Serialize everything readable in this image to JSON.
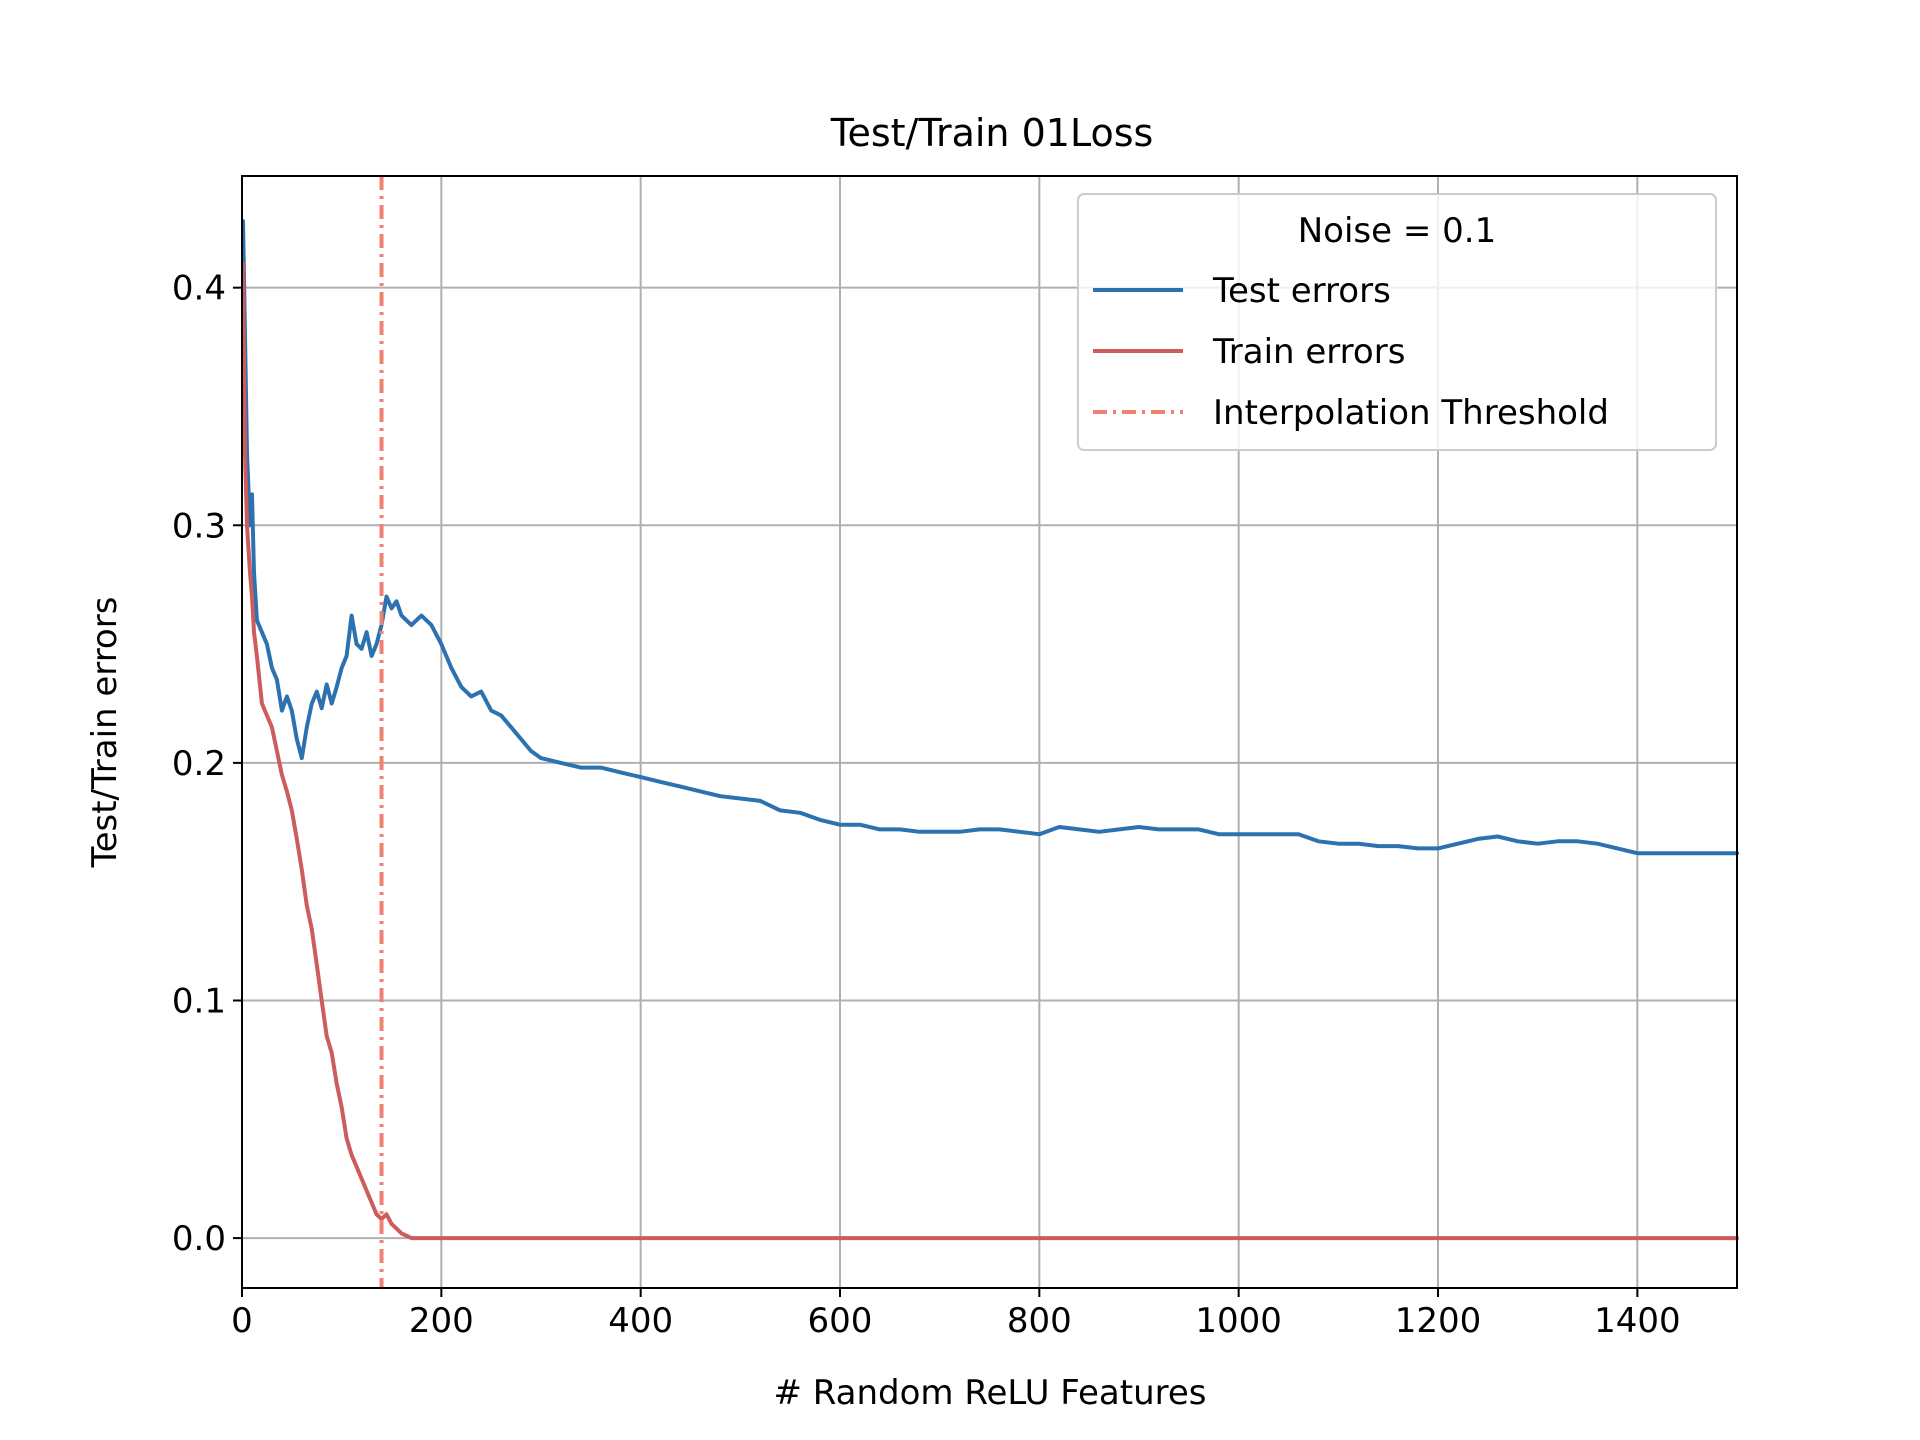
{
  "chart_data": {
    "type": "line",
    "title": "Test/Train 01Loss",
    "xlabel": "# Random ReLU Features",
    "ylabel": "Test/Train errors",
    "xlim": [
      0,
      1500
    ],
    "ylim": [
      -0.021,
      0.447
    ],
    "x_ticks": [
      0,
      200,
      400,
      600,
      800,
      1000,
      1200,
      1400
    ],
    "y_ticks": [
      0.0,
      0.1,
      0.2,
      0.3,
      0.4
    ],
    "x_tick_labels": [
      "0",
      "200",
      "400",
      "600",
      "800",
      "1000",
      "1200",
      "1400"
    ],
    "y_tick_labels": [
      "0.0",
      "0.1",
      "0.2",
      "0.3",
      "0.4"
    ],
    "grid": true,
    "legend": {
      "title": "Noise = 0.1",
      "placement": "top-right",
      "entries": [
        "Test errors",
        "Train errors",
        "Interpolation Threshold"
      ]
    },
    "colors": {
      "test": "#2c72b0",
      "train": "#cd5c5c",
      "threshold": "#f08070",
      "grid": "#b0b0b0"
    },
    "interpolation_threshold_x": 140,
    "series": [
      {
        "name": "Test errors",
        "points": [
          [
            1,
            0.428
          ],
          [
            3,
            0.38
          ],
          [
            5,
            0.33
          ],
          [
            8,
            0.3
          ],
          [
            10,
            0.313
          ],
          [
            12,
            0.28
          ],
          [
            15,
            0.26
          ],
          [
            20,
            0.255
          ],
          [
            25,
            0.25
          ],
          [
            30,
            0.24
          ],
          [
            35,
            0.235
          ],
          [
            40,
            0.222
          ],
          [
            45,
            0.228
          ],
          [
            50,
            0.222
          ],
          [
            55,
            0.21
          ],
          [
            60,
            0.202
          ],
          [
            65,
            0.215
          ],
          [
            70,
            0.225
          ],
          [
            75,
            0.23
          ],
          [
            80,
            0.223
          ],
          [
            85,
            0.233
          ],
          [
            90,
            0.225
          ],
          [
            95,
            0.232
          ],
          [
            100,
            0.24
          ],
          [
            105,
            0.245
          ],
          [
            110,
            0.262
          ],
          [
            115,
            0.25
          ],
          [
            120,
            0.248
          ],
          [
            125,
            0.255
          ],
          [
            130,
            0.245
          ],
          [
            135,
            0.25
          ],
          [
            140,
            0.258
          ],
          [
            145,
            0.27
          ],
          [
            150,
            0.265
          ],
          [
            155,
            0.268
          ],
          [
            160,
            0.262
          ],
          [
            170,
            0.258
          ],
          [
            180,
            0.262
          ],
          [
            190,
            0.258
          ],
          [
            200,
            0.25
          ],
          [
            210,
            0.24
          ],
          [
            220,
            0.232
          ],
          [
            230,
            0.228
          ],
          [
            240,
            0.23
          ],
          [
            250,
            0.222
          ],
          [
            260,
            0.22
          ],
          [
            270,
            0.215
          ],
          [
            280,
            0.21
          ],
          [
            290,
            0.205
          ],
          [
            300,
            0.202
          ],
          [
            320,
            0.2
          ],
          [
            340,
            0.198
          ],
          [
            360,
            0.198
          ],
          [
            380,
            0.196
          ],
          [
            400,
            0.194
          ],
          [
            420,
            0.192
          ],
          [
            440,
            0.19
          ],
          [
            460,
            0.188
          ],
          [
            480,
            0.186
          ],
          [
            500,
            0.185
          ],
          [
            520,
            0.184
          ],
          [
            540,
            0.18
          ],
          [
            560,
            0.179
          ],
          [
            580,
            0.176
          ],
          [
            600,
            0.174
          ],
          [
            620,
            0.174
          ],
          [
            640,
            0.172
          ],
          [
            660,
            0.172
          ],
          [
            680,
            0.171
          ],
          [
            700,
            0.171
          ],
          [
            720,
            0.171
          ],
          [
            740,
            0.172
          ],
          [
            760,
            0.172
          ],
          [
            780,
            0.171
          ],
          [
            800,
            0.17
          ],
          [
            820,
            0.173
          ],
          [
            840,
            0.172
          ],
          [
            860,
            0.171
          ],
          [
            880,
            0.172
          ],
          [
            900,
            0.173
          ],
          [
            920,
            0.172
          ],
          [
            940,
            0.172
          ],
          [
            960,
            0.172
          ],
          [
            980,
            0.17
          ],
          [
            1000,
            0.17
          ],
          [
            1020,
            0.17
          ],
          [
            1040,
            0.17
          ],
          [
            1060,
            0.17
          ],
          [
            1080,
            0.167
          ],
          [
            1100,
            0.166
          ],
          [
            1120,
            0.166
          ],
          [
            1140,
            0.165
          ],
          [
            1160,
            0.165
          ],
          [
            1180,
            0.164
          ],
          [
            1200,
            0.164
          ],
          [
            1220,
            0.166
          ],
          [
            1240,
            0.168
          ],
          [
            1260,
            0.169
          ],
          [
            1280,
            0.167
          ],
          [
            1300,
            0.166
          ],
          [
            1320,
            0.167
          ],
          [
            1340,
            0.167
          ],
          [
            1360,
            0.166
          ],
          [
            1380,
            0.164
          ],
          [
            1400,
            0.162
          ],
          [
            1420,
            0.162
          ],
          [
            1440,
            0.162
          ],
          [
            1460,
            0.162
          ],
          [
            1480,
            0.162
          ],
          [
            1500,
            0.162
          ]
        ]
      },
      {
        "name": "Train errors",
        "points": [
          [
            1,
            0.41
          ],
          [
            3,
            0.33
          ],
          [
            5,
            0.3
          ],
          [
            8,
            0.28
          ],
          [
            10,
            0.27
          ],
          [
            12,
            0.255
          ],
          [
            15,
            0.245
          ],
          [
            20,
            0.225
          ],
          [
            25,
            0.22
          ],
          [
            30,
            0.215
          ],
          [
            35,
            0.205
          ],
          [
            40,
            0.195
          ],
          [
            45,
            0.188
          ],
          [
            50,
            0.18
          ],
          [
            55,
            0.168
          ],
          [
            60,
            0.155
          ],
          [
            65,
            0.14
          ],
          [
            70,
            0.13
          ],
          [
            75,
            0.115
          ],
          [
            80,
            0.1
          ],
          [
            85,
            0.085
          ],
          [
            90,
            0.078
          ],
          [
            95,
            0.065
          ],
          [
            100,
            0.055
          ],
          [
            105,
            0.042
          ],
          [
            110,
            0.035
          ],
          [
            115,
            0.03
          ],
          [
            120,
            0.025
          ],
          [
            125,
            0.02
          ],
          [
            130,
            0.015
          ],
          [
            135,
            0.01
          ],
          [
            140,
            0.008
          ],
          [
            145,
            0.01
          ],
          [
            150,
            0.006
          ],
          [
            155,
            0.004
          ],
          [
            160,
            0.002
          ],
          [
            165,
            0.001
          ],
          [
            170,
            0.0
          ],
          [
            180,
            0.0
          ],
          [
            200,
            0.0
          ],
          [
            400,
            0.0
          ],
          [
            600,
            0.0
          ],
          [
            800,
            0.0
          ],
          [
            1000,
            0.0
          ],
          [
            1200,
            0.0
          ],
          [
            1400,
            0.0
          ],
          [
            1500,
            0.0
          ]
        ]
      }
    ]
  }
}
